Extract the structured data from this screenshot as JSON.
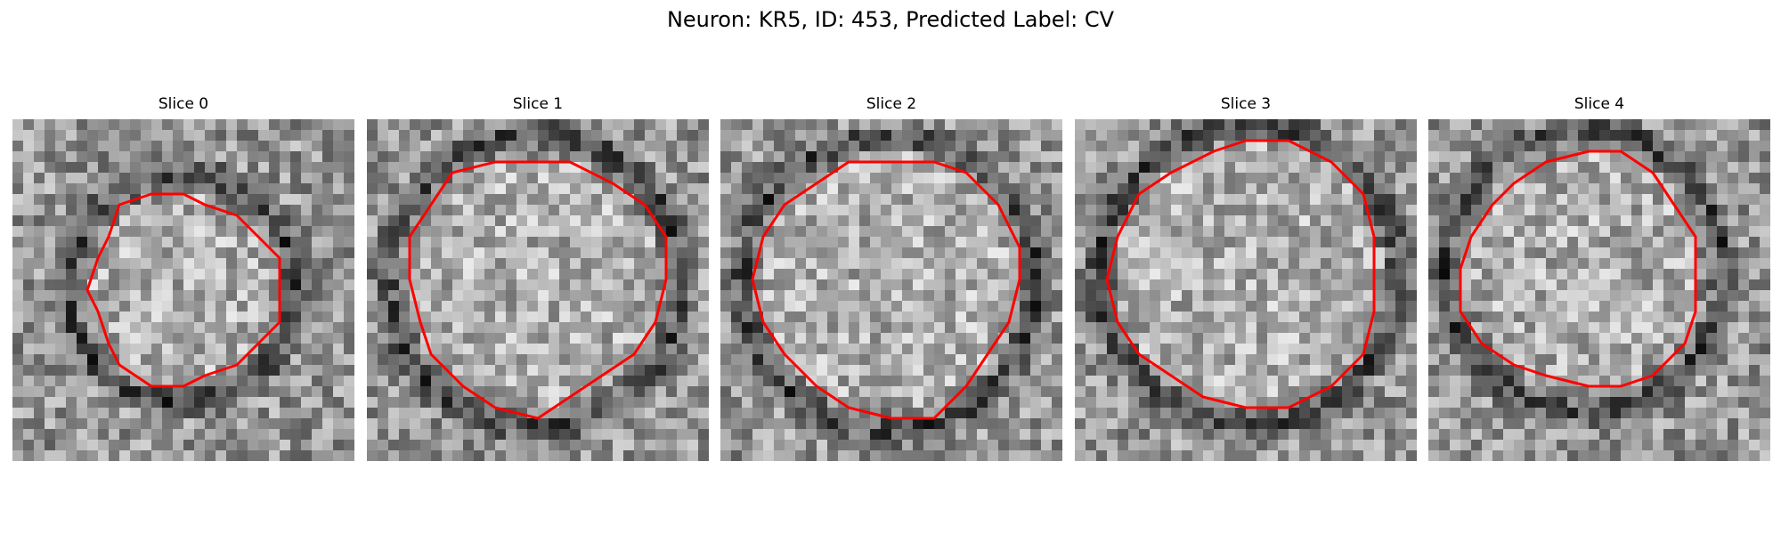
{
  "title": "Neuron: KR5, ID: 453, Predicted Label: CV",
  "contour_color": "#ff0000",
  "panels": [
    {
      "label": "Slice 0"
    },
    {
      "label": "Slice 1"
    },
    {
      "label": "Slice 2"
    },
    {
      "label": "Slice 3"
    },
    {
      "label": "Slice 4"
    }
  ]
}
